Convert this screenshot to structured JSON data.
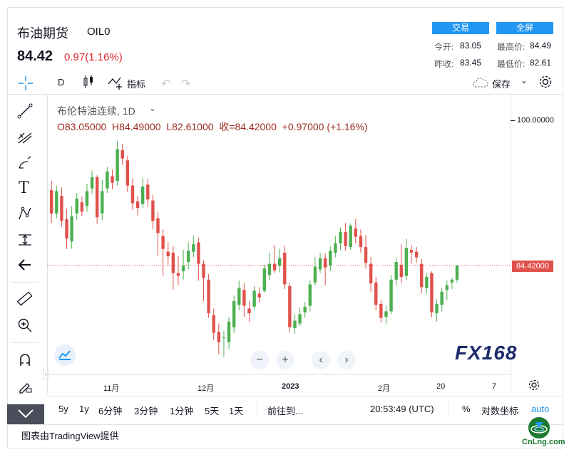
{
  "header": {
    "title": "布油期货",
    "symbol": "OIL0",
    "price": "84.42",
    "change": "0.97(1.16%)",
    "trade_label": "交易",
    "fullscreen_label": "全屏",
    "stats": {
      "open_label": "今开:",
      "open_value": "83.05",
      "high_label": "最高价:",
      "high_value": "84.49",
      "prev_label": "昨收:",
      "prev_value": "83.45",
      "low_label": "最低价:",
      "low_value": "82.61"
    }
  },
  "toolbar": {
    "interval": "D",
    "indicators_label": "指标",
    "save_label": "保存"
  },
  "legend": {
    "title": "布伦特油连续, 1D",
    "ohlc": "O83.05000  H84.49000  L82.61000  收=84.42000  +0.97000 (+1.16%)"
  },
  "price_axis": {
    "top_label": "100.00000",
    "current_label": "84.42000",
    "current_color": "#e0514b"
  },
  "time_axis": [
    "11月",
    "12月",
    "2023",
    "2月",
    "20",
    "7"
  ],
  "bottom_bar": {
    "ranges": [
      "5y",
      "1y",
      "6分钟",
      "3分钟",
      "1分钟",
      "5天",
      "1天"
    ],
    "goto_label": "前往到...",
    "clock": "20:53:49 (UTC)",
    "percent_label": "%",
    "log_label": "对数坐标",
    "auto_label": "auto"
  },
  "watermark": "FX168",
  "footer": "图表由TradingView提供",
  "corner_logo": "CnLng.com",
  "colors": {
    "up": "#4caf50",
    "down": "#e0514b",
    "accent": "#2196f3"
  },
  "chart_data": {
    "type": "candlestick",
    "title": "布伦特油连续, 1D",
    "ylim": [
      70,
      102
    ],
    "last": 84.42,
    "candles": [
      {
        "o": 92.5,
        "c": 90.0,
        "h": 93.5,
        "l": 89.0
      },
      {
        "o": 90.0,
        "c": 92.4,
        "h": 93.0,
        "l": 89.5
      },
      {
        "o": 91.9,
        "c": 89.2,
        "h": 92.8,
        "l": 88.6
      },
      {
        "o": 89.4,
        "c": 87.3,
        "h": 90.5,
        "l": 86.2
      },
      {
        "o": 87.0,
        "c": 89.7,
        "h": 90.8,
        "l": 86.2
      },
      {
        "o": 90.0,
        "c": 91.6,
        "h": 92.2,
        "l": 89.3
      },
      {
        "o": 91.2,
        "c": 90.2,
        "h": 91.8,
        "l": 89.7
      },
      {
        "o": 90.8,
        "c": 92.4,
        "h": 93.2,
        "l": 90.2
      },
      {
        "o": 92.7,
        "c": 93.9,
        "h": 94.6,
        "l": 92.1
      },
      {
        "o": 93.9,
        "c": 89.6,
        "h": 94.1,
        "l": 88.9
      },
      {
        "o": 90.0,
        "c": 92.4,
        "h": 93.6,
        "l": 89.3
      },
      {
        "o": 92.7,
        "c": 94.5,
        "h": 95.0,
        "l": 92.2
      },
      {
        "o": 94.0,
        "c": 93.3,
        "h": 94.7,
        "l": 92.6
      },
      {
        "o": 93.5,
        "c": 96.9,
        "h": 97.8,
        "l": 93.0
      },
      {
        "o": 96.8,
        "c": 95.9,
        "h": 97.5,
        "l": 95.2
      },
      {
        "o": 95.7,
        "c": 93.0,
        "h": 96.2,
        "l": 92.3
      },
      {
        "o": 93.0,
        "c": 91.1,
        "h": 93.8,
        "l": 90.4
      },
      {
        "o": 91.3,
        "c": 90.6,
        "h": 91.9,
        "l": 89.8
      },
      {
        "o": 91.0,
        "c": 92.9,
        "h": 93.8,
        "l": 90.6
      },
      {
        "o": 93.1,
        "c": 91.5,
        "h": 93.7,
        "l": 90.7
      },
      {
        "o": 91.4,
        "c": 89.2,
        "h": 92.0,
        "l": 88.3
      },
      {
        "o": 89.5,
        "c": 87.9,
        "h": 90.2,
        "l": 85.5
      },
      {
        "o": 87.6,
        "c": 86.2,
        "h": 88.3,
        "l": 83.3
      },
      {
        "o": 85.9,
        "c": 85.4,
        "h": 86.9,
        "l": 84.5
      },
      {
        "o": 85.8,
        "c": 83.6,
        "h": 86.5,
        "l": 81.8
      },
      {
        "o": 83.6,
        "c": 83.3,
        "h": 85.4,
        "l": 82.3
      },
      {
        "o": 83.8,
        "c": 84.4,
        "h": 86.1,
        "l": 82.9
      },
      {
        "o": 84.8,
        "c": 86.0,
        "h": 86.9,
        "l": 84.0
      },
      {
        "o": 85.9,
        "c": 86.7,
        "h": 87.6,
        "l": 85.3
      },
      {
        "o": 86.9,
        "c": 84.6,
        "h": 87.4,
        "l": 82.8
      },
      {
        "o": 84.6,
        "c": 83.1,
        "h": 85.0,
        "l": 80.6
      },
      {
        "o": 82.9,
        "c": 79.3,
        "h": 83.5,
        "l": 78.8
      },
      {
        "o": 79.1,
        "c": 77.2,
        "h": 79.8,
        "l": 76.4
      },
      {
        "o": 77.3,
        "c": 76.2,
        "h": 78.2,
        "l": 74.9
      },
      {
        "o": 76.7,
        "c": 76.7,
        "h": 77.4,
        "l": 74.6
      },
      {
        "o": 76.2,
        "c": 78.4,
        "h": 78.9,
        "l": 75.5
      },
      {
        "o": 77.8,
        "c": 80.6,
        "h": 81.2,
        "l": 77.2
      },
      {
        "o": 80.2,
        "c": 82.0,
        "h": 82.8,
        "l": 79.6
      },
      {
        "o": 81.8,
        "c": 80.1,
        "h": 82.5,
        "l": 78.9
      },
      {
        "o": 79.8,
        "c": 79.3,
        "h": 80.6,
        "l": 78.4
      },
      {
        "o": 80.0,
        "c": 81.7,
        "h": 82.2,
        "l": 79.6
      },
      {
        "o": 81.4,
        "c": 81.0,
        "h": 82.1,
        "l": 80.4
      },
      {
        "o": 81.7,
        "c": 84.1,
        "h": 84.5,
        "l": 81.5
      },
      {
        "o": 83.4,
        "c": 84.6,
        "h": 85.8,
        "l": 82.9
      },
      {
        "o": 84.6,
        "c": 83.9,
        "h": 86.6,
        "l": 83.6
      },
      {
        "o": 84.4,
        "c": 85.2,
        "h": 86.2,
        "l": 83.7
      },
      {
        "o": 85.8,
        "c": 82.4,
        "h": 86.5,
        "l": 81.9
      },
      {
        "o": 82.2,
        "c": 77.8,
        "h": 82.6,
        "l": 77.2
      },
      {
        "o": 77.7,
        "c": 78.5,
        "h": 79.2,
        "l": 77.1
      },
      {
        "o": 78.2,
        "c": 79.2,
        "h": 79.9,
        "l": 77.9
      },
      {
        "o": 79.4,
        "c": 80.0,
        "h": 80.5,
        "l": 78.8
      },
      {
        "o": 80.1,
        "c": 82.4,
        "h": 82.8,
        "l": 79.5
      },
      {
        "o": 82.6,
        "c": 84.3,
        "h": 85.3,
        "l": 82.3
      },
      {
        "o": 84.0,
        "c": 85.2,
        "h": 85.8,
        "l": 83.6
      },
      {
        "o": 85.2,
        "c": 84.2,
        "h": 85.7,
        "l": 82.3
      },
      {
        "o": 84.4,
        "c": 86.0,
        "h": 86.5,
        "l": 83.8
      },
      {
        "o": 85.8,
        "c": 86.8,
        "h": 87.6,
        "l": 85.3
      },
      {
        "o": 86.8,
        "c": 88.0,
        "h": 88.5,
        "l": 86.1
      },
      {
        "o": 88.0,
        "c": 86.5,
        "h": 89.0,
        "l": 86.0
      },
      {
        "o": 86.4,
        "c": 88.7,
        "h": 88.9,
        "l": 86.1
      },
      {
        "o": 88.4,
        "c": 87.5,
        "h": 89.4,
        "l": 86.8
      },
      {
        "o": 87.6,
        "c": 86.4,
        "h": 88.3,
        "l": 85.8
      },
      {
        "o": 86.4,
        "c": 84.7,
        "h": 87.7,
        "l": 84.1
      },
      {
        "o": 84.6,
        "c": 82.5,
        "h": 85.3,
        "l": 81.6
      },
      {
        "o": 82.6,
        "c": 80.2,
        "h": 83.2,
        "l": 79.6
      },
      {
        "o": 80.3,
        "c": 78.8,
        "h": 80.7,
        "l": 78.3
      },
      {
        "o": 78.9,
        "c": 79.5,
        "h": 80.1,
        "l": 78.1
      },
      {
        "o": 79.5,
        "c": 82.9,
        "h": 83.4,
        "l": 79.2
      },
      {
        "o": 82.9,
        "c": 84.8,
        "h": 85.3,
        "l": 82.3
      },
      {
        "o": 84.5,
        "c": 83.2,
        "h": 86.7,
        "l": 82.5
      },
      {
        "o": 83.3,
        "c": 86.3,
        "h": 87.3,
        "l": 82.9
      },
      {
        "o": 86.1,
        "c": 85.8,
        "h": 86.6,
        "l": 84.6
      },
      {
        "o": 85.9,
        "c": 85.3,
        "h": 86.4,
        "l": 84.7
      },
      {
        "o": 84.6,
        "c": 82.1,
        "h": 85.1,
        "l": 81.4
      },
      {
        "o": 82.0,
        "c": 83.2,
        "h": 83.6,
        "l": 81.4
      },
      {
        "o": 83.6,
        "c": 79.4,
        "h": 83.8,
        "l": 78.9
      },
      {
        "o": 79.3,
        "c": 80.3,
        "h": 80.8,
        "l": 78.4
      },
      {
        "o": 80.2,
        "c": 81.6,
        "h": 82.0,
        "l": 79.5
      },
      {
        "o": 81.8,
        "c": 82.3,
        "h": 82.8,
        "l": 80.7
      },
      {
        "o": 82.6,
        "c": 82.9,
        "h": 83.1,
        "l": 81.9
      },
      {
        "o": 82.9,
        "c": 84.4,
        "h": 84.5,
        "l": 82.6
      }
    ]
  }
}
